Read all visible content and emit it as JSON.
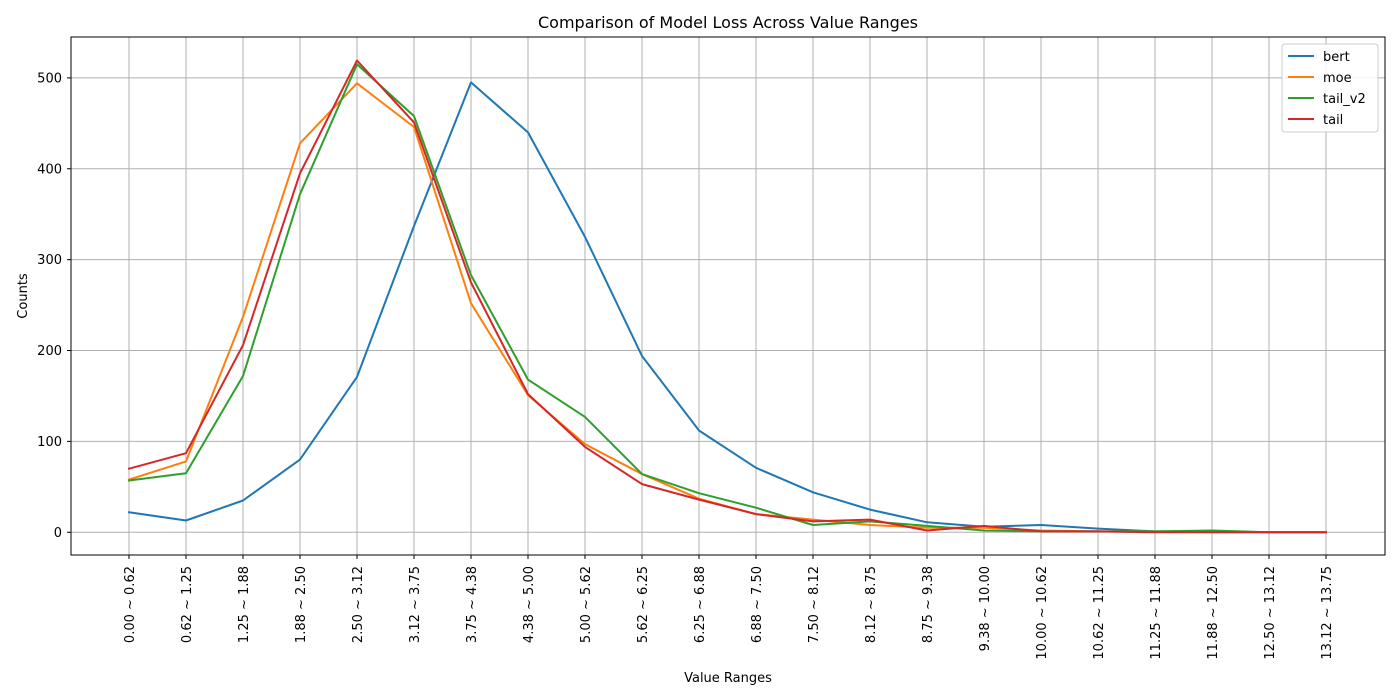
{
  "chart_data": {
    "type": "line",
    "title": "Comparison of Model Loss Across Value Ranges",
    "xlabel": "Value Ranges",
    "ylabel": "Counts",
    "ylim": [
      -25,
      545
    ],
    "yticks": [
      0,
      100,
      200,
      300,
      400,
      500
    ],
    "grid": true,
    "legend_position": "top-right",
    "categories": [
      "0.00 ~ 0.62",
      "0.62 ~ 1.25",
      "1.25 ~ 1.88",
      "1.88 ~ 2.50",
      "2.50 ~ 3.12",
      "3.12 ~ 3.75",
      "3.75 ~ 4.38",
      "4.38 ~ 5.00",
      "5.00 ~ 5.62",
      "5.62 ~ 6.25",
      "6.25 ~ 6.88",
      "6.88 ~ 7.50",
      "7.50 ~ 8.12",
      "8.12 ~ 8.75",
      "8.75 ~ 9.38",
      "9.38 ~ 10.00",
      "10.00 ~ 10.62",
      "10.62 ~ 11.25",
      "11.25 ~ 11.88",
      "11.88 ~ 12.50",
      "12.50 ~ 13.12",
      "13.12 ~ 13.75"
    ],
    "series": [
      {
        "name": "bert",
        "color": "#1f77b4",
        "values": [
          22,
          13,
          35,
          80,
          171,
          337,
          495,
          440,
          325,
          194,
          112,
          71,
          44,
          25,
          11,
          6,
          8,
          4,
          1,
          1,
          0,
          0
        ]
      },
      {
        "name": "moe",
        "color": "#ff7f0e",
        "values": [
          58,
          78,
          237,
          428,
          494,
          446,
          252,
          151,
          97,
          64,
          37,
          20,
          14,
          8,
          5,
          5,
          2,
          1,
          1,
          0,
          0,
          0
        ]
      },
      {
        "name": "tail_v2",
        "color": "#2ca02c",
        "values": [
          57,
          65,
          172,
          372,
          515,
          458,
          283,
          168,
          127,
          64,
          43,
          27,
          8,
          12,
          7,
          2,
          1,
          1,
          1,
          2,
          0,
          0
        ]
      },
      {
        "name": "tail",
        "color": "#d62728",
        "values": [
          70,
          87,
          206,
          395,
          519,
          451,
          275,
          152,
          94,
          53,
          36,
          20,
          12,
          14,
          2,
          7,
          1,
          1,
          0,
          0,
          0,
          0
        ]
      }
    ]
  }
}
